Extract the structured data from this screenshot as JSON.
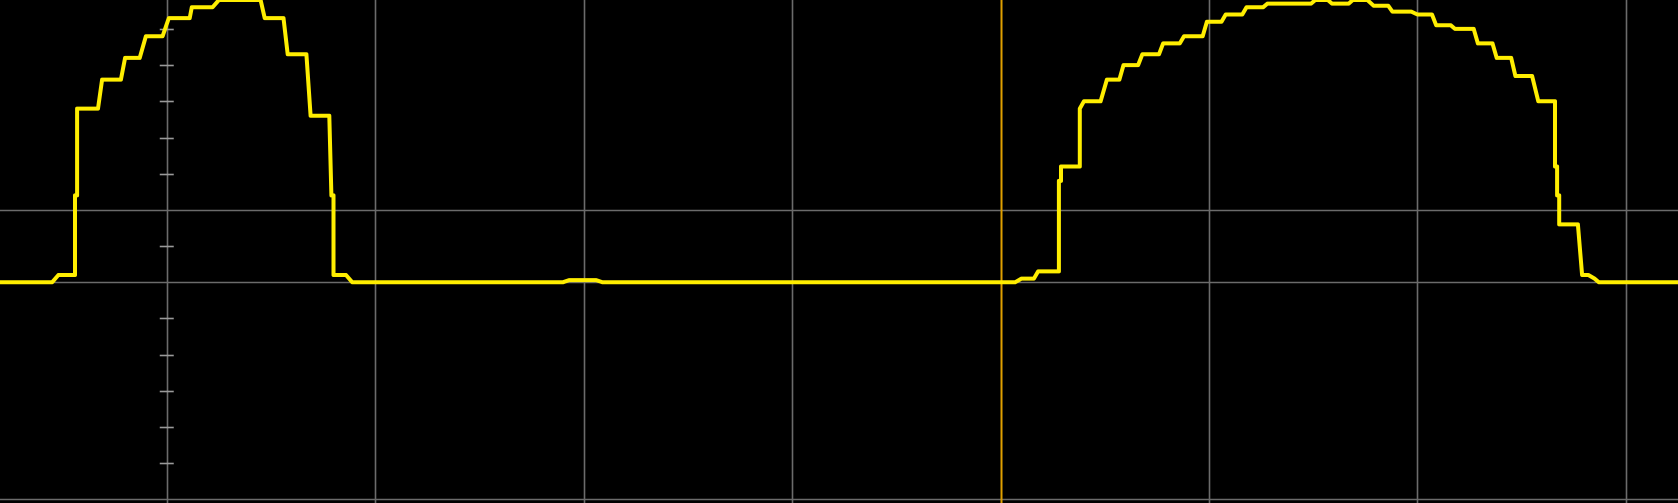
{
  "colors": {
    "background": "#000000",
    "grid": "#6b6b6b",
    "tick": "#9a9a9a",
    "trace": "#ffee00",
    "trigger": "#e0a000"
  },
  "chart_data": {
    "type": "line",
    "title": "",
    "xlabel": "",
    "ylabel": "",
    "grid": true,
    "xlim": [
      -0.8,
      7.25
    ],
    "ylim": [
      -3.05,
      3.9
    ],
    "vertical_divisions": [
      0,
      1,
      2,
      3,
      4,
      5,
      6,
      7
    ],
    "horizontal_divisions": [
      -3,
      0,
      1
    ],
    "center_axis_x": 0,
    "minor_tick_y": [
      -2.5,
      -2.0,
      -1.5,
      -1.0,
      -0.5,
      0.5,
      1.5,
      2.0,
      2.5,
      3.0,
      3.5
    ],
    "trigger_marker_x": 4.0,
    "series": [
      {
        "values_xy": [
          [
            -0.8,
            0.0
          ],
          [
            -0.55,
            0.0
          ],
          [
            -0.52,
            0.1
          ],
          [
            -0.44,
            0.1
          ],
          [
            -0.44,
            1.2
          ],
          [
            -0.43,
            1.2
          ],
          [
            -0.43,
            2.4
          ],
          [
            -0.33,
            2.4
          ],
          [
            -0.31,
            2.8
          ],
          [
            -0.22,
            2.8
          ],
          [
            -0.2,
            3.1
          ],
          [
            -0.13,
            3.1
          ],
          [
            -0.1,
            3.4
          ],
          [
            -0.02,
            3.4
          ],
          [
            0.01,
            3.65
          ],
          [
            0.11,
            3.65
          ],
          [
            0.12,
            3.8
          ],
          [
            0.22,
            3.8
          ],
          [
            0.25,
            3.9
          ],
          [
            0.45,
            3.9
          ],
          [
            0.47,
            3.65
          ],
          [
            0.56,
            3.65
          ],
          [
            0.58,
            3.15
          ],
          [
            0.67,
            3.15
          ],
          [
            0.69,
            2.3
          ],
          [
            0.78,
            2.3
          ],
          [
            0.79,
            1.2
          ],
          [
            0.8,
            1.2
          ],
          [
            0.8,
            0.1
          ],
          [
            0.86,
            0.1
          ],
          [
            0.89,
            0.0
          ],
          [
            1.9,
            0.0
          ],
          [
            1.93,
            0.03
          ],
          [
            2.06,
            0.03
          ],
          [
            2.09,
            0.0
          ],
          [
            4.07,
            0.0
          ],
          [
            4.1,
            0.05
          ],
          [
            4.16,
            0.05
          ],
          [
            4.18,
            0.15
          ],
          [
            4.28,
            0.15
          ],
          [
            4.28,
            1.4
          ],
          [
            4.29,
            1.4
          ],
          [
            4.29,
            1.6
          ],
          [
            4.38,
            1.6
          ],
          [
            4.38,
            2.4
          ],
          [
            4.4,
            2.5
          ],
          [
            4.48,
            2.5
          ],
          [
            4.51,
            2.8
          ],
          [
            4.57,
            2.8
          ],
          [
            4.59,
            3.0
          ],
          [
            4.66,
            3.0
          ],
          [
            4.68,
            3.15
          ],
          [
            4.76,
            3.15
          ],
          [
            4.78,
            3.3
          ],
          [
            4.86,
            3.3
          ],
          [
            4.88,
            3.4
          ],
          [
            4.97,
            3.4
          ],
          [
            4.99,
            3.6
          ],
          [
            5.06,
            3.6
          ],
          [
            5.08,
            3.7
          ],
          [
            5.16,
            3.7
          ],
          [
            5.18,
            3.8
          ],
          [
            5.26,
            3.8
          ],
          [
            5.28,
            3.85
          ],
          [
            5.49,
            3.85
          ],
          [
            5.51,
            3.9
          ],
          [
            5.57,
            3.9
          ],
          [
            5.59,
            3.85
          ],
          [
            5.67,
            3.85
          ],
          [
            5.69,
            3.9
          ],
          [
            5.76,
            3.9
          ],
          [
            5.79,
            3.82
          ],
          [
            5.86,
            3.82
          ],
          [
            5.88,
            3.74
          ],
          [
            5.97,
            3.74
          ],
          [
            6.0,
            3.7
          ],
          [
            6.07,
            3.7
          ],
          [
            6.09,
            3.55
          ],
          [
            6.16,
            3.55
          ],
          [
            6.18,
            3.5
          ],
          [
            6.27,
            3.5
          ],
          [
            6.29,
            3.3
          ],
          [
            6.36,
            3.3
          ],
          [
            6.38,
            3.1
          ],
          [
            6.45,
            3.1
          ],
          [
            6.47,
            2.85
          ],
          [
            6.55,
            2.85
          ],
          [
            6.58,
            2.5
          ],
          [
            6.66,
            2.5
          ],
          [
            6.66,
            1.6
          ],
          [
            6.67,
            1.6
          ],
          [
            6.67,
            1.2
          ],
          [
            6.68,
            1.2
          ],
          [
            6.68,
            0.8
          ],
          [
            6.77,
            0.8
          ],
          [
            6.79,
            0.1
          ],
          [
            6.82,
            0.1
          ],
          [
            6.85,
            0.05
          ],
          [
            6.87,
            0.0
          ],
          [
            7.25,
            0.0
          ]
        ]
      }
    ]
  }
}
